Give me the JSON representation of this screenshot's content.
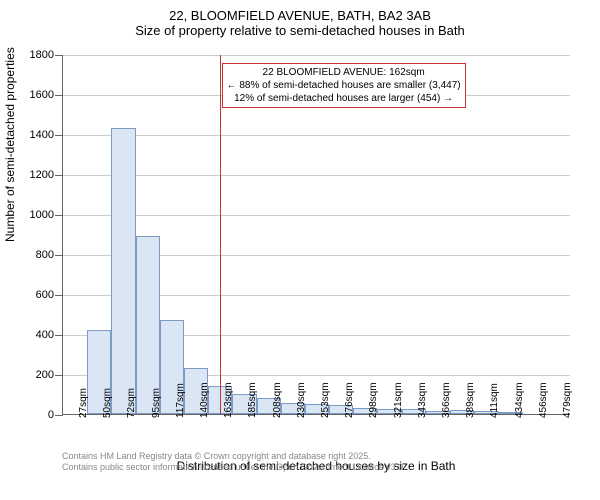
{
  "title": "22, BLOOMFIELD AVENUE, BATH, BA2 3AB",
  "subtitle": "Size of property relative to semi-detached houses in Bath",
  "chart": {
    "type": "histogram",
    "ylim": [
      0,
      1800
    ],
    "ytick_step": 200,
    "yticks": [
      0,
      200,
      400,
      600,
      800,
      1000,
      1200,
      1400,
      1600,
      1800
    ],
    "x_categories": [
      "27sqm",
      "50sqm",
      "72sqm",
      "95sqm",
      "117sqm",
      "140sqm",
      "163sqm",
      "185sqm",
      "208sqm",
      "230sqm",
      "253sqm",
      "276sqm",
      "298sqm",
      "321sqm",
      "343sqm",
      "366sqm",
      "389sqm",
      "411sqm",
      "434sqm",
      "456sqm",
      "479sqm"
    ],
    "values": [
      0,
      420,
      1430,
      890,
      470,
      230,
      140,
      100,
      80,
      55,
      50,
      45,
      30,
      25,
      25,
      15,
      18,
      15,
      5,
      0,
      0
    ],
    "bar_color": "#dbe6f5",
    "bar_border": "#7b9bc4",
    "grid_color": "#cccccc",
    "axis_color": "#666666",
    "background": "#ffffff",
    "marker_value": 162,
    "marker_color": "#cc3333",
    "annotation": {
      "line1": "22 BLOOMFIELD AVENUE: 162sqm",
      "line2": "← 88% of semi-detached houses are smaller (3,447)",
      "line3": "12% of semi-detached houses are larger (454) →"
    },
    "y_axis_title": "Number of semi-detached properties",
    "x_axis_title": "Distribution of semi-detached houses by size in Bath"
  },
  "footnote": {
    "line1": "Contains HM Land Registry data © Crown copyright and database right 2025.",
    "line2": "Contains public sector information licensed under the Open Government Licence v3.0."
  }
}
